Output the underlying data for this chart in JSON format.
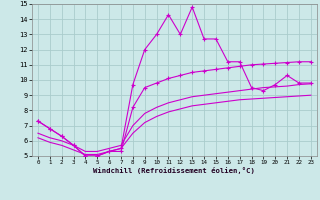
{
  "xlabel": "Windchill (Refroidissement éolien,°C)",
  "xlim": [
    -0.5,
    23.5
  ],
  "ylim": [
    5,
    15
  ],
  "xticks": [
    0,
    1,
    2,
    3,
    4,
    5,
    6,
    7,
    8,
    9,
    10,
    11,
    12,
    13,
    14,
    15,
    16,
    17,
    18,
    19,
    20,
    21,
    22,
    23
  ],
  "yticks": [
    5,
    6,
    7,
    8,
    9,
    10,
    11,
    12,
    13,
    14,
    15
  ],
  "background_color": "#cce8e8",
  "grid_color": "#aacccc",
  "line_color": "#cc00cc",
  "line1_y": [
    7.3,
    6.8,
    6.3,
    5.7,
    5.0,
    5.0,
    5.3,
    5.5,
    9.7,
    12.0,
    13.0,
    14.3,
    13.0,
    14.8,
    12.7,
    12.7,
    11.2,
    11.2,
    9.5,
    9.3,
    9.7,
    10.3,
    9.8,
    9.8
  ],
  "line2_y": [
    7.3,
    6.8,
    6.3,
    5.7,
    5.0,
    5.0,
    5.3,
    5.3,
    8.2,
    9.5,
    9.8,
    10.1,
    10.3,
    10.5,
    10.6,
    10.7,
    10.8,
    10.9,
    11.0,
    11.05,
    11.1,
    11.15,
    11.2,
    11.2
  ],
  "line3_y": [
    6.5,
    6.2,
    6.0,
    5.7,
    5.3,
    5.3,
    5.5,
    5.7,
    7.0,
    7.8,
    8.2,
    8.5,
    8.7,
    8.9,
    9.0,
    9.1,
    9.2,
    9.3,
    9.4,
    9.5,
    9.55,
    9.6,
    9.7,
    9.75
  ],
  "line4_y": [
    6.2,
    5.9,
    5.7,
    5.4,
    5.1,
    5.1,
    5.3,
    5.5,
    6.5,
    7.2,
    7.6,
    7.9,
    8.1,
    8.3,
    8.4,
    8.5,
    8.6,
    8.7,
    8.75,
    8.8,
    8.85,
    8.9,
    8.95,
    9.0
  ]
}
